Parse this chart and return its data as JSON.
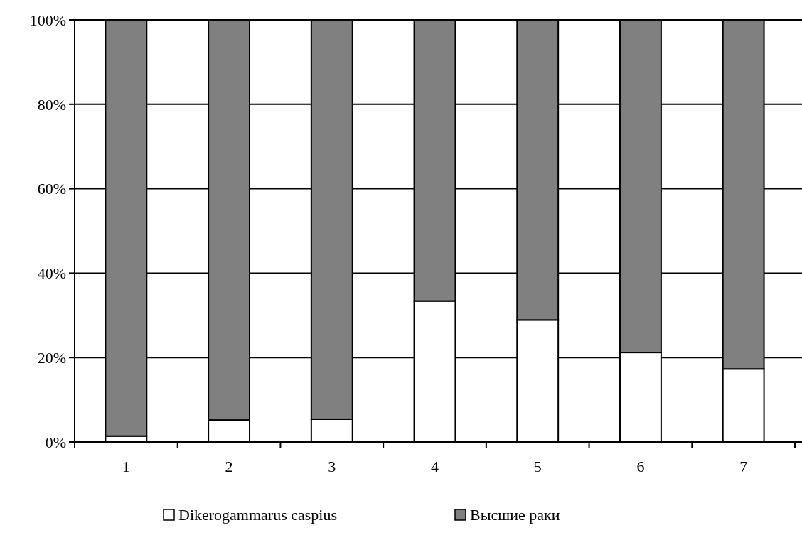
{
  "chart_data": {
    "type": "bar",
    "stacked": true,
    "categories": [
      "1",
      "2",
      "3",
      "4",
      "5",
      "6",
      "7"
    ],
    "series": [
      {
        "name": "Dikerogammarus caspius",
        "color": "#ffffff",
        "values": [
          1.4,
          5.2,
          5.4,
          33.4,
          28.9,
          21.2,
          17.3
        ]
      },
      {
        "name": "Высшие раки",
        "color": "#808080",
        "values": [
          98.6,
          94.8,
          94.6,
          66.6,
          71.1,
          78.8,
          82.7
        ]
      }
    ],
    "ylim": [
      0,
      100
    ],
    "yticks": [
      {
        "value": 0,
        "label": "0%"
      },
      {
        "value": 20,
        "label": "20%"
      },
      {
        "value": 40,
        "label": "40%"
      },
      {
        "value": 60,
        "label": "60%"
      },
      {
        "value": 80,
        "label": "80%"
      },
      {
        "value": 100,
        "label": "100%"
      }
    ],
    "grid": "y",
    "legend": "bottom"
  }
}
